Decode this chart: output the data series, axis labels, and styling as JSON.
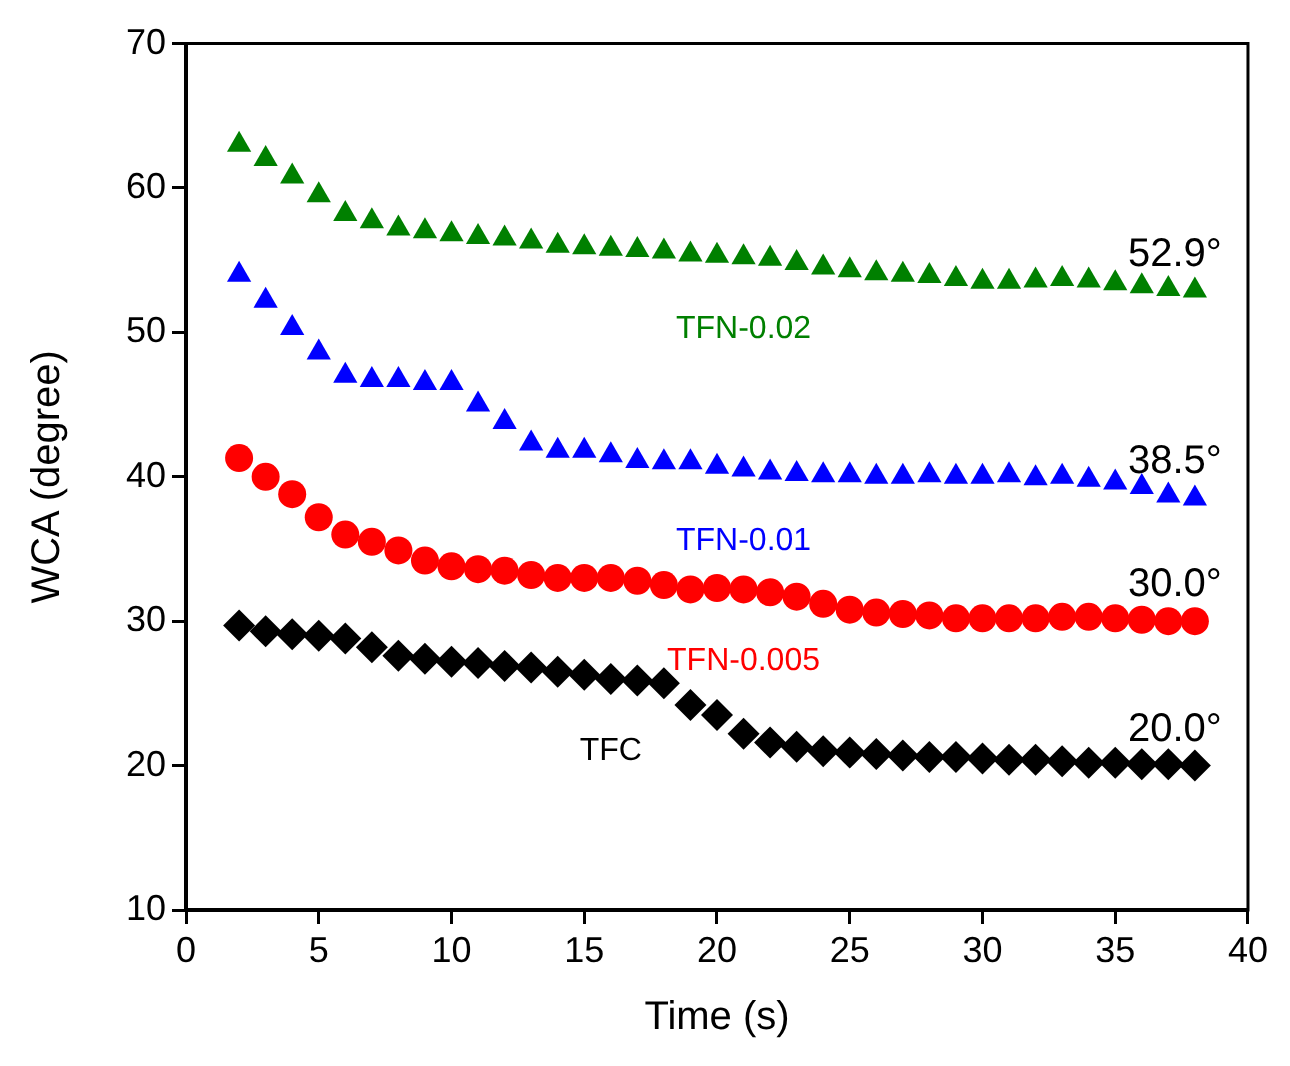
{
  "chart_data": {
    "type": "scatter",
    "xlabel": "Time (s)",
    "ylabel": "WCA (degree)",
    "xlim": [
      0,
      40
    ],
    "xticks": [
      0,
      5,
      10,
      15,
      20,
      25,
      30,
      35,
      40
    ],
    "ylim": [
      10,
      70
    ],
    "yticks": [
      10,
      20,
      30,
      40,
      50,
      60,
      70
    ],
    "grid": false,
    "legend": false,
    "x": [
      2,
      3,
      4,
      5,
      6,
      7,
      8,
      9,
      10,
      11,
      12,
      13,
      14,
      15,
      16,
      17,
      18,
      19,
      20,
      21,
      22,
      23,
      24,
      25,
      26,
      27,
      28,
      29,
      30,
      31,
      32,
      33,
      34,
      35,
      36,
      37,
      38
    ],
    "series": [
      {
        "name": "TFN-0.02",
        "color": "#008000",
        "marker": "triangle",
        "values": [
          63,
          62,
          60.8,
          59.5,
          58.2,
          57.7,
          57.2,
          57,
          56.8,
          56.6,
          56.5,
          56.3,
          56,
          55.9,
          55.8,
          55.7,
          55.6,
          55.4,
          55.3,
          55.2,
          55.1,
          54.8,
          54.5,
          54.3,
          54.1,
          54,
          53.9,
          53.7,
          53.5,
          53.5,
          53.6,
          53.7,
          53.6,
          53.4,
          53.2,
          53,
          52.9
        ]
      },
      {
        "name": "TFN-0.01",
        "color": "#0000ff",
        "marker": "triangle",
        "values": [
          54,
          52.2,
          50.3,
          48.6,
          47,
          46.7,
          46.7,
          46.5,
          46.5,
          45,
          43.8,
          42.3,
          41.8,
          41.8,
          41.5,
          41.1,
          41,
          41,
          40.7,
          40.5,
          40.3,
          40.2,
          40.1,
          40.1,
          40,
          40,
          40.1,
          40,
          40,
          40.1,
          39.9,
          40,
          39.8,
          39.6,
          39.3,
          38.7,
          38.5
        ]
      },
      {
        "name": "TFN-0.005",
        "color": "#ff0000",
        "marker": "circle",
        "values": [
          41.3,
          40,
          38.8,
          37.2,
          36,
          35.5,
          34.9,
          34.2,
          33.8,
          33.6,
          33.5,
          33.2,
          33,
          33,
          33,
          32.8,
          32.5,
          32.2,
          32.3,
          32.2,
          32,
          31.7,
          31.2,
          30.8,
          30.6,
          30.5,
          30.4,
          30.2,
          30.2,
          30.2,
          30.2,
          30.3,
          30.3,
          30.2,
          30.1,
          30,
          30
        ]
      },
      {
        "name": "TFC",
        "color": "#000000",
        "marker": "diamond",
        "values": [
          29.7,
          29.3,
          29.1,
          29,
          28.8,
          28.2,
          27.6,
          27.4,
          27.2,
          27.1,
          26.9,
          26.8,
          26.5,
          26.3,
          26,
          25.9,
          25.7,
          24.2,
          23.5,
          22.2,
          21.6,
          21.3,
          21,
          20.9,
          20.8,
          20.7,
          20.6,
          20.6,
          20.5,
          20.4,
          20.4,
          20.3,
          20.2,
          20.2,
          20.1,
          20.1,
          20
        ]
      }
    ],
    "annotations": [
      "52.9°",
      "38.5°",
      "30.0°",
      "20.0°"
    ]
  }
}
